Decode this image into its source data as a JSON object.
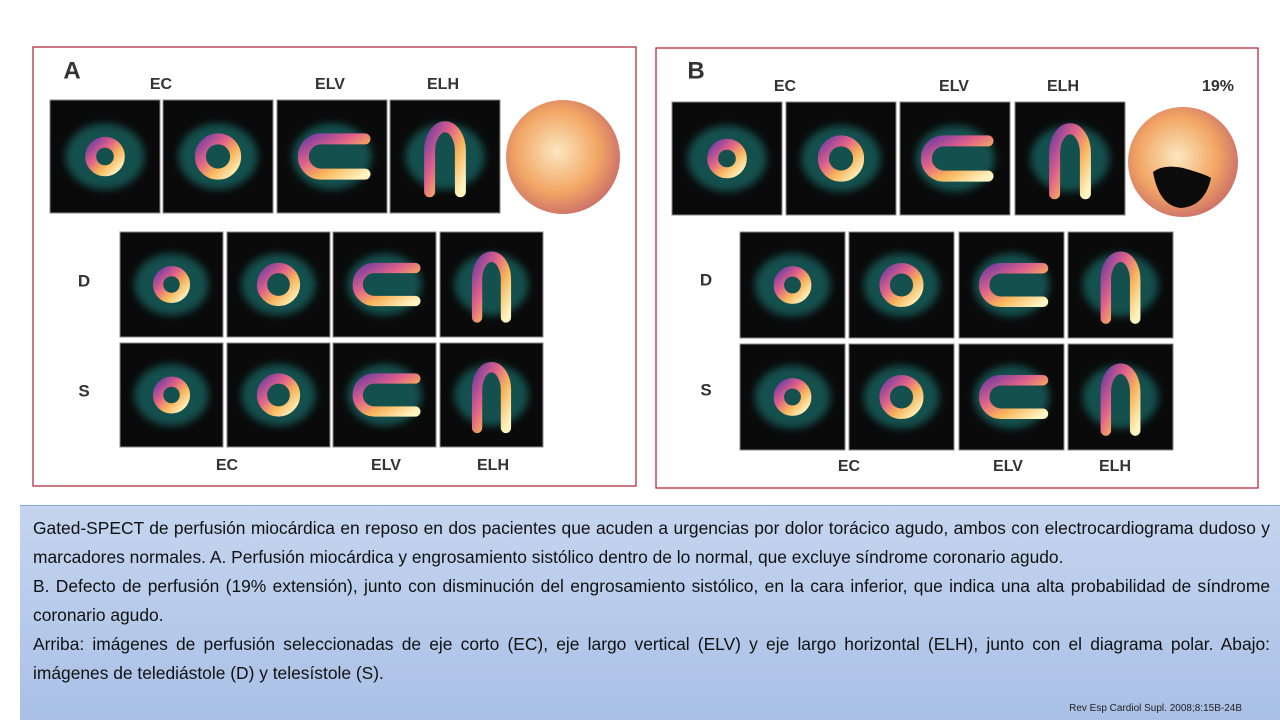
{
  "panels": [
    {
      "label": "A",
      "top_labels": [
        "EC",
        "ELV",
        "ELH"
      ],
      "row_labels": [
        "D",
        "S"
      ],
      "bottom_labels": [
        "EC",
        "ELV",
        "ELH"
      ]
    },
    {
      "label": "B",
      "top_labels": [
        "EC",
        "ELV",
        "ELH"
      ],
      "polar_label": "19%",
      "row_labels": [
        "D",
        "S"
      ],
      "bottom_labels": [
        "EC",
        "ELV",
        "ELH"
      ]
    }
  ],
  "caption": {
    "paragraphs": [
      "Gated-SPECT de perfusión miocárdica en reposo en dos pacientes que acuden a urgencias por dolor torácico agudo, ambos con electrocardiograma dudoso y marcadores normales. A. Perfusión miocárdica y engrosamiento sistólico dentro de lo normal, que excluye síndrome coronario agudo.",
      "B. Defecto de perfusión (19% extensión), junto con disminución del engrosamiento sistólico, en la cara inferior, que indica una alta probabilidad de síndrome coronario agudo.",
      "Arriba: imágenes de perfusión seleccionadas de eje corto (EC), eje largo vertical (ELV) y eje largo horizontal (ELH), junto con el diagrama polar. Abajo: imágenes de telediástole (D) y telesístole (S)."
    ],
    "citation": "Rev Esp Cardiol Supl. 2008;8:15B-24B"
  }
}
